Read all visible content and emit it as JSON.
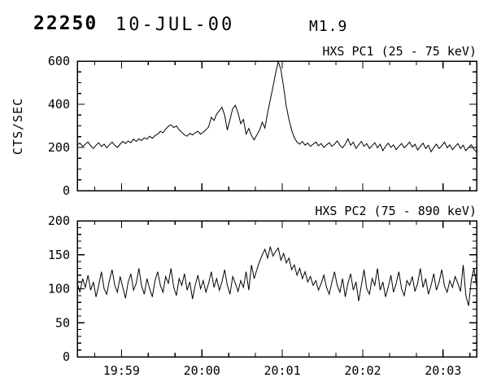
{
  "header": {
    "event_number": "22250",
    "date": "10-JUL-00",
    "flare_class": "M1.9"
  },
  "colors": {
    "foreground": "#000000",
    "background": "#ffffff"
  },
  "x_axis": {
    "tick_labels": [
      "19:59",
      "20:00",
      "20:01",
      "20:02",
      "20:03"
    ],
    "tick_sec": [
      33,
      93,
      153,
      213,
      273
    ],
    "minor_first_sec": 13,
    "minor_step_sec": 20,
    "range_sec": [
      0,
      298
    ],
    "start_time": "19:58:27"
  },
  "chart_data": [
    {
      "type": "line",
      "title": "HXS PC1 (25 - 75 keV)",
      "ylabel": "CTS/SEC",
      "ylim": [
        0,
        600
      ],
      "ytick_major": 200,
      "ytick_minor": 50,
      "ytick_labels": [
        "0",
        "200",
        "400",
        "600"
      ],
      "grid": false,
      "x_start_sec": 0,
      "x_step_sec": 2,
      "values": [
        212,
        220,
        205,
        215,
        225,
        208,
        195,
        210,
        222,
        204,
        215,
        198,
        212,
        225,
        210,
        200,
        215,
        228,
        218,
        230,
        222,
        238,
        228,
        240,
        232,
        245,
        238,
        252,
        242,
        255,
        262,
        275,
        268,
        285,
        298,
        305,
        292,
        300,
        282,
        270,
        258,
        252,
        265,
        258,
        268,
        275,
        262,
        270,
        282,
        295,
        340,
        325,
        355,
        370,
        386,
        350,
        280,
        330,
        380,
        395,
        360,
        310,
        330,
        262,
        288,
        255,
        235,
        258,
        280,
        317,
        290,
        360,
        420,
        480,
        545,
        598,
        560,
        480,
        390,
        330,
        280,
        245,
        225,
        215,
        228,
        210,
        220,
        205,
        215,
        225,
        208,
        218,
        200,
        212,
        222,
        205,
        215,
        230,
        210,
        198,
        215,
        240,
        210,
        225,
        195,
        212,
        228,
        205,
        218,
        195,
        208,
        222,
        198,
        215,
        185,
        205,
        220,
        200,
        212,
        190,
        205,
        218,
        198,
        210,
        225,
        202,
        215,
        188,
        205,
        220,
        195,
        210,
        180,
        200,
        215,
        195,
        208,
        225,
        198,
        212,
        190,
        205,
        218,
        195,
        210,
        185,
        200,
        212,
        192,
        178
      ]
    },
    {
      "type": "line",
      "title": "HXS PC2 (75 - 890 keV)",
      "ylabel": "",
      "ylim": [
        0,
        200
      ],
      "ytick_major": 50,
      "ytick_minor": 10,
      "ytick_labels": [
        "0",
        "50",
        "100",
        "150",
        "200"
      ],
      "grid": false,
      "x_start_sec": 0,
      "x_step_sec": 2,
      "values": [
        108,
        95,
        115,
        102,
        120,
        98,
        110,
        88,
        105,
        125,
        100,
        92,
        112,
        128,
        105,
        95,
        118,
        102,
        86,
        110,
        122,
        98,
        108,
        130,
        104,
        92,
        115,
        100,
        88,
        112,
        125,
        105,
        95,
        118,
        108,
        130,
        102,
        90,
        115,
        105,
        122,
        98,
        110,
        85,
        105,
        120,
        100,
        112,
        95,
        108,
        125,
        102,
        115,
        98,
        110,
        128,
        105,
        92,
        118,
        108,
        96,
        112,
        102,
        125,
        98,
        135,
        115,
        128,
        140,
        150,
        158,
        145,
        162,
        148,
        155,
        160,
        142,
        152,
        138,
        145,
        128,
        135,
        120,
        130,
        115,
        125,
        110,
        118,
        105,
        112,
        98,
        108,
        120,
        102,
        92,
        110,
        125,
        105,
        95,
        115,
        88,
        108,
        122,
        98,
        110,
        82,
        105,
        128,
        100,
        92,
        115,
        105,
        130,
        98,
        110,
        88,
        102,
        120,
        95,
        108,
        125,
        100,
        90,
        112,
        105,
        118,
        96,
        108,
        130,
        102,
        115,
        92,
        105,
        122,
        98,
        110,
        128,
        104,
        95,
        112,
        102,
        118,
        108,
        96,
        135,
        90,
        75,
        112,
        130,
        105
      ]
    }
  ]
}
